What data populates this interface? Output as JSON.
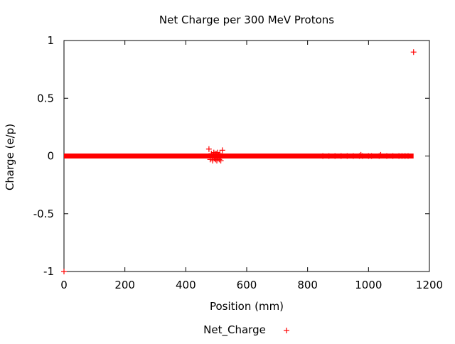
{
  "chart_data": {
    "type": "scatter",
    "title": "Net Charge per 300 MeV Protons",
    "xlabel": "Position (mm)",
    "ylabel": "Charge (e/p)",
    "xlim": [
      0,
      1200
    ],
    "ylim": [
      -1,
      1
    ],
    "x_ticks": [
      0,
      200,
      400,
      600,
      800,
      1000,
      1200
    ],
    "y_ticks": [
      -1,
      -0.5,
      0,
      0.5,
      1
    ],
    "x_tick_labels": [
      "0",
      "200",
      "400",
      "600",
      "800",
      "1000",
      "1200"
    ],
    "y_tick_labels": [
      "-1",
      "-0.5",
      "0",
      "0.5",
      "1"
    ],
    "grid": false,
    "legend_position": "bottom-center",
    "marker": "+",
    "series": [
      {
        "name": "Net_Charge",
        "color": "#ff0000",
        "notes_baseline_range": [
          0,
          1148
        ],
        "x": [
          0,
          476,
          480,
          484,
          488,
          490,
          492,
          494,
          496,
          498,
          500,
          502,
          504,
          506,
          508,
          510,
          512,
          515,
          520,
          850,
          870,
          890,
          910,
          930,
          950,
          970,
          975,
          980,
          1000,
          1010,
          1035,
          1040,
          1060,
          1080,
          1100,
          1110,
          1120,
          1130,
          1148
        ],
        "y": [
          -1,
          0.06,
          -0.03,
          0.02,
          -0.04,
          0.01,
          0.03,
          -0.02,
          0.02,
          -0.03,
          0.02,
          -0.04,
          0.03,
          -0.02,
          0.01,
          -0.03,
          0.02,
          -0.04,
          0.05,
          0.0,
          0.0,
          0.0,
          0.0,
          0.0,
          0.0,
          0.0,
          0.01,
          0.0,
          0.0,
          0.0,
          0.0,
          0.01,
          0.0,
          0.0,
          0.0,
          0.0,
          0.0,
          0.0,
          0.9
        ]
      }
    ]
  }
}
